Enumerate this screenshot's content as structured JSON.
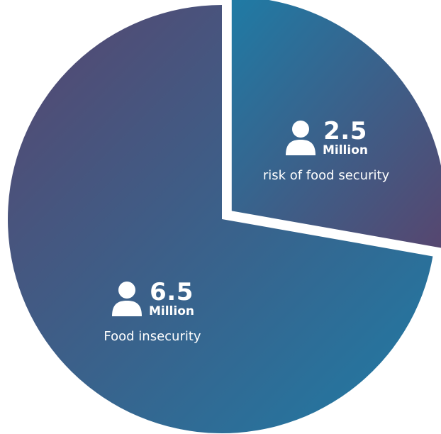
{
  "chart_data": {
    "type": "pie",
    "title": "",
    "slices": [
      {
        "value": 6.5,
        "unit": "Million",
        "label": "Food insecurity",
        "color_start": "#57466f",
        "color_end": "#1f7ba5",
        "exploded": false
      },
      {
        "value": 2.5,
        "unit": "Million",
        "label": "risk of food security",
        "color_start": "#1f7ba5",
        "color_end": "#57466f",
        "exploded": true
      }
    ],
    "value_display": [
      "6.5",
      "2.5"
    ],
    "icon": "person-icon",
    "text_color": "#ffffff"
  }
}
